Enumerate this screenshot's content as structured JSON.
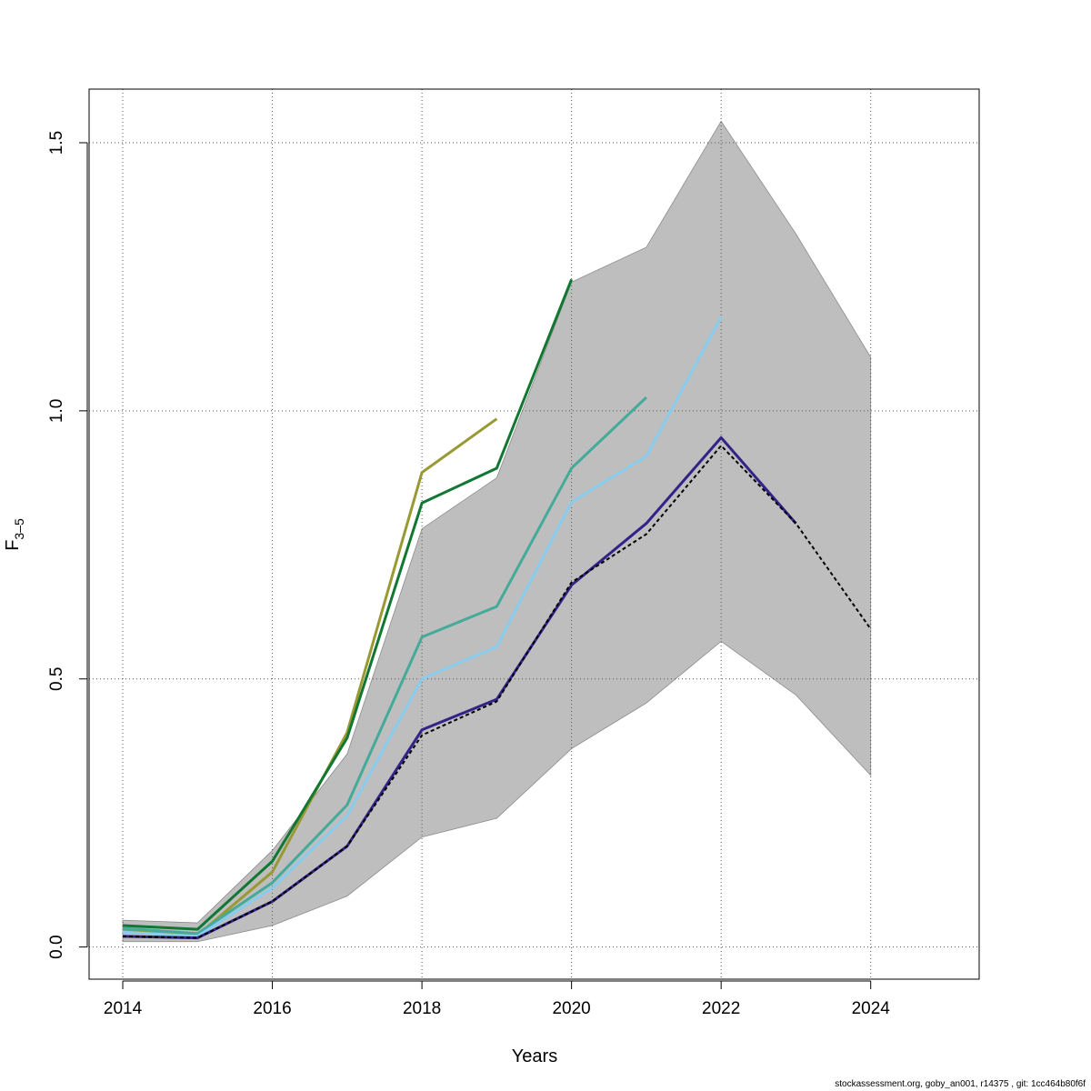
{
  "footer_text": "stockassessment.org, goby_an001, r14375 , git: 1cc464b80f6f",
  "chart_data": {
    "type": "line",
    "xlabel": "Years",
    "ylabel_main": "F",
    "ylabel_sub": "3–5",
    "xlim": [
      2013.55,
      2025.45
    ],
    "ylim": [
      -0.06,
      1.6
    ],
    "x_ticks": [
      2014,
      2016,
      2018,
      2020,
      2022,
      2024
    ],
    "y_ticks": [
      0.0,
      0.5,
      1.0,
      1.5
    ],
    "y_tick_labels": [
      "0.0",
      "0.5",
      "1.0",
      "1.5"
    ],
    "grid": true,
    "confidence_band": {
      "color": "#bebebe",
      "x": [
        2014,
        2015,
        2016,
        2017,
        2018,
        2019,
        2020,
        2021,
        2022,
        2023,
        2024
      ],
      "lower": [
        0.01,
        0.01,
        0.04,
        0.095,
        0.205,
        0.24,
        0.37,
        0.455,
        0.57,
        0.47,
        0.32
      ],
      "upper": [
        0.05,
        0.045,
        0.18,
        0.36,
        0.78,
        0.875,
        1.24,
        1.305,
        1.54,
        1.33,
        1.1
      ]
    },
    "series": [
      {
        "color": "#999933",
        "dashed": false,
        "x": [
          2014,
          2015,
          2016,
          2017,
          2018,
          2019
        ],
        "values": [
          0.03,
          0.022,
          0.14,
          0.4,
          0.885,
          0.985
        ]
      },
      {
        "color": "#117733",
        "dashed": false,
        "x": [
          2014,
          2015,
          2016,
          2017,
          2018,
          2019,
          2020
        ],
        "values": [
          0.04,
          0.033,
          0.16,
          0.39,
          0.828,
          0.893,
          1.245
        ]
      },
      {
        "color": "#44AA99",
        "dashed": false,
        "x": [
          2014,
          2015,
          2016,
          2017,
          2018,
          2019,
          2020,
          2021
        ],
        "values": [
          0.035,
          0.025,
          0.12,
          0.265,
          0.578,
          0.635,
          0.893,
          1.025
        ]
      },
      {
        "color": "#88CCEE",
        "dashed": false,
        "x": [
          2014,
          2015,
          2016,
          2017,
          2018,
          2019,
          2020,
          2021,
          2022
        ],
        "values": [
          0.028,
          0.02,
          0.11,
          0.245,
          0.5,
          0.56,
          0.83,
          0.915,
          1.175
        ]
      },
      {
        "color": "#332288",
        "dashed": false,
        "x": [
          2014,
          2015,
          2016,
          2017,
          2018,
          2019,
          2020,
          2021,
          2022,
          2023
        ],
        "values": [
          0.02,
          0.017,
          0.085,
          0.188,
          0.405,
          0.462,
          0.675,
          0.79,
          0.95,
          0.79
        ]
      },
      {
        "color": "#000000",
        "dashed": true,
        "x": [
          2014,
          2015,
          2016,
          2017,
          2018,
          2019,
          2020,
          2021,
          2022,
          2023,
          2024
        ],
        "values": [
          0.02,
          0.017,
          0.085,
          0.188,
          0.395,
          0.458,
          0.68,
          0.77,
          0.935,
          0.79,
          0.593
        ]
      }
    ]
  }
}
